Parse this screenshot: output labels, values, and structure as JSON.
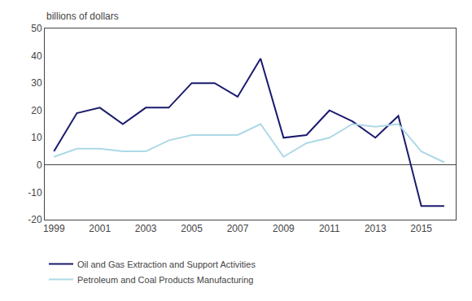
{
  "chart_data": {
    "type": "line",
    "ylabel": "billions of dollars",
    "x": [
      1999,
      2000,
      2001,
      2002,
      2003,
      2004,
      2005,
      2006,
      2007,
      2008,
      2009,
      2010,
      2011,
      2012,
      2013,
      2014,
      2015,
      2016
    ],
    "series": [
      {
        "name": "Oil and Gas Extraction and Support Activities",
        "color": "#1a1a6e",
        "values": [
          5,
          19,
          21,
          15,
          21,
          21,
          30,
          30,
          25,
          39,
          10,
          11,
          20,
          16,
          10,
          18,
          -15,
          -15
        ]
      },
      {
        "name": "Petroleum and Coal Products Manufacturing",
        "color": "#add8e6",
        "values": [
          3,
          6,
          6,
          5,
          5,
          9,
          11,
          11,
          11,
          15,
          3,
          8,
          10,
          15,
          14,
          15,
          5,
          1
        ]
      }
    ],
    "xlim": [
      1998.6,
      2016.5
    ],
    "xticks": [
      1999,
      2001,
      2003,
      2005,
      2007,
      2009,
      2011,
      2013,
      2015
    ],
    "ylim": [
      -20,
      50
    ],
    "yticks": [
      -20,
      -10,
      0,
      10,
      20,
      30,
      40,
      50
    ],
    "grid": false,
    "legend": "below"
  }
}
